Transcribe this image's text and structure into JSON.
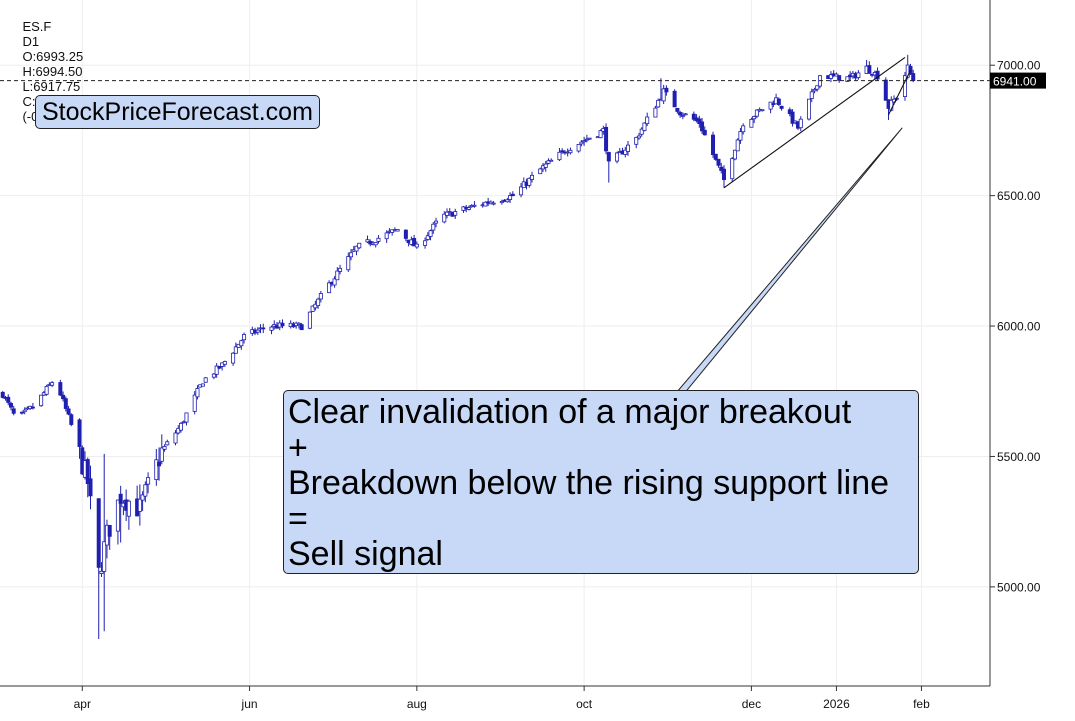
{
  "header": {
    "symbol": "ES.F",
    "interval": "D1",
    "open": "O:6993.25",
    "high": "H:6994.50",
    "low": "L:6917.75",
    "close": "C:6941.00",
    "change": "(-0.74%)"
  },
  "watermark": "StockPriceForecast.com",
  "annotation": {
    "lines": [
      "Clear invalidation of a major breakout",
      "+",
      "Breakdown below the rising support line",
      "=",
      "Sell signal"
    ]
  },
  "last_price_label": "6941.00",
  "colors": {
    "up": "#ffffff",
    "down": "#1f1fb0",
    "outline": "#1f1fb0",
    "callout": "#c8d9f7",
    "grid": "#eeeeee"
  },
  "chart_data": {
    "type": "candlestick",
    "title": "",
    "x_tick_labels": [
      "apr",
      "jun",
      "aug",
      "oct",
      "dec",
      "2026",
      "feb"
    ],
    "y_tick_labels": [
      "5000.00",
      "5500.00",
      "6000.00",
      "6500.00",
      "7000.00"
    ],
    "ylim": [
      4620,
      7250
    ],
    "x_range": [
      "2025-03-01",
      "2026-02-20"
    ],
    "grid": true,
    "last_price": 6941.0,
    "close_path": [
      [
        "2025-03-01",
        5780
      ],
      [
        "2025-03-08",
        5640
      ],
      [
        "2025-03-15",
        5700
      ],
      [
        "2025-03-22",
        5800
      ],
      [
        "2025-03-28",
        5620
      ],
      [
        "2025-04-03",
        5400
      ],
      [
        "2025-04-07",
        5050
      ],
      [
        "2025-04-10",
        5200
      ],
      [
        "2025-04-15",
        5350
      ],
      [
        "2025-04-22",
        5300
      ],
      [
        "2025-04-30",
        5520
      ],
      [
        "2025-05-07",
        5620
      ],
      [
        "2025-05-15",
        5790
      ],
      [
        "2025-05-22",
        5850
      ],
      [
        "2025-05-30",
        5960
      ],
      [
        "2025-06-08",
        6000
      ],
      [
        "2025-06-20",
        6000
      ],
      [
        "2025-06-30",
        6160
      ],
      [
        "2025-07-10",
        6300
      ],
      [
        "2025-07-25",
        6370
      ],
      [
        "2025-08-01",
        6300
      ],
      [
        "2025-08-10",
        6420
      ],
      [
        "2025-08-25",
        6470
      ],
      [
        "2025-09-05",
        6500
      ],
      [
        "2025-09-15",
        6600
      ],
      [
        "2025-09-25",
        6680
      ],
      [
        "2025-10-08",
        6750
      ],
      [
        "2025-10-10",
        6620
      ],
      [
        "2025-10-20",
        6720
      ],
      [
        "2025-10-30",
        6900
      ],
      [
        "2025-11-05",
        6820
      ],
      [
        "2025-11-12",
        6780
      ],
      [
        "2025-11-21",
        6560
      ],
      [
        "2025-11-28",
        6780
      ],
      [
        "2025-12-10",
        6870
      ],
      [
        "2025-12-18",
        6760
      ],
      [
        "2025-12-26",
        6960
      ],
      [
        "2026-01-06",
        6950
      ],
      [
        "2026-01-12",
        6990
      ],
      [
        "2026-01-16",
        6960
      ],
      [
        "2026-01-20",
        6840
      ],
      [
        "2026-01-23",
        6880
      ],
      [
        "2026-01-27",
        6990
      ],
      [
        "2026-01-29",
        6941
      ]
    ],
    "low_spikes": [
      [
        "2025-04-07",
        4800
      ],
      [
        "2025-04-09",
        4830
      ],
      [
        "2025-04-15",
        5170
      ],
      [
        "2025-10-10",
        6550
      ],
      [
        "2025-11-21",
        6530
      ],
      [
        "2026-01-20",
        6790
      ]
    ],
    "high_spikes": [
      [
        "2025-04-09",
        5510
      ],
      [
        "2025-10-29",
        6950
      ],
      [
        "2026-01-12",
        7020
      ],
      [
        "2026-01-27",
        7040
      ]
    ],
    "trendlines": [
      {
        "name": "rising support line",
        "from": [
          "2025-11-21",
          6530
        ],
        "to": [
          "2026-01-26",
          7030
        ]
      },
      {
        "name": "short support line",
        "from": [
          "2026-01-20",
          6810
        ],
        "to": [
          "2026-01-28",
          6980
        ]
      },
      {
        "name": "callout pointer",
        "from": [
          "2025-10-31",
          5700
        ],
        "to": [
          "2026-01-25",
          6760
        ]
      }
    ],
    "dashed_line": {
      "name": "last price line",
      "y": 6941.0
    }
  }
}
